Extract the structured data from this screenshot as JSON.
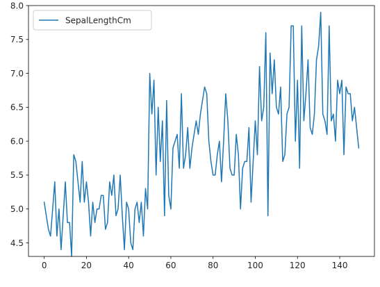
{
  "chart_data": {
    "type": "line",
    "title": "",
    "xlabel": "",
    "ylabel": "",
    "xlim": [
      -7.45,
      156.45
    ],
    "ylim": [
      4.3,
      8.0
    ],
    "x_ticks": [
      0,
      20,
      40,
      60,
      80,
      100,
      120,
      140
    ],
    "y_ticks": [
      4.5,
      5.0,
      5.5,
      6.0,
      6.5,
      7.0,
      7.5,
      8.0
    ],
    "legend": {
      "position": "upper-left"
    },
    "grid": false,
    "series": [
      {
        "name": "SepalLengthCm",
        "color": "#1f77b4",
        "x_start": 0,
        "values": [
          5.1,
          4.9,
          4.7,
          4.6,
          5.0,
          5.4,
          4.6,
          5.0,
          4.4,
          4.9,
          5.4,
          4.8,
          4.8,
          4.3,
          5.8,
          5.7,
          5.4,
          5.1,
          5.7,
          5.1,
          5.4,
          5.1,
          4.6,
          5.1,
          4.8,
          5.0,
          5.0,
          5.2,
          5.2,
          4.7,
          4.8,
          5.4,
          5.2,
          5.5,
          4.9,
          5.0,
          5.5,
          4.9,
          4.4,
          5.1,
          5.0,
          4.5,
          4.4,
          5.0,
          5.1,
          4.8,
          5.1,
          4.6,
          5.3,
          5.0,
          7.0,
          6.4,
          6.9,
          5.5,
          6.5,
          5.7,
          6.3,
          4.9,
          6.6,
          5.2,
          5.0,
          5.9,
          6.0,
          6.1,
          5.6,
          6.7,
          5.6,
          5.8,
          6.2,
          5.6,
          5.9,
          6.1,
          6.3,
          6.1,
          6.4,
          6.6,
          6.8,
          6.7,
          6.0,
          5.7,
          5.5,
          5.5,
          5.8,
          6.0,
          5.4,
          6.0,
          6.7,
          6.3,
          5.6,
          5.5,
          5.5,
          6.1,
          5.8,
          5.0,
          5.6,
          5.7,
          5.7,
          6.2,
          5.1,
          5.7,
          6.3,
          5.8,
          7.1,
          6.3,
          6.5,
          7.6,
          4.9,
          7.3,
          6.7,
          7.2,
          6.5,
          6.4,
          6.8,
          5.7,
          5.8,
          6.4,
          6.5,
          7.7,
          7.7,
          6.0,
          6.9,
          5.6,
          7.7,
          6.3,
          6.7,
          7.2,
          6.2,
          6.1,
          6.4,
          7.2,
          7.4,
          7.9,
          6.4,
          6.3,
          6.1,
          7.7,
          6.3,
          6.4,
          6.0,
          6.9,
          6.7,
          6.9,
          5.8,
          6.8,
          6.7,
          6.7,
          6.3,
          6.5,
          6.2,
          5.9
        ]
      }
    ]
  }
}
